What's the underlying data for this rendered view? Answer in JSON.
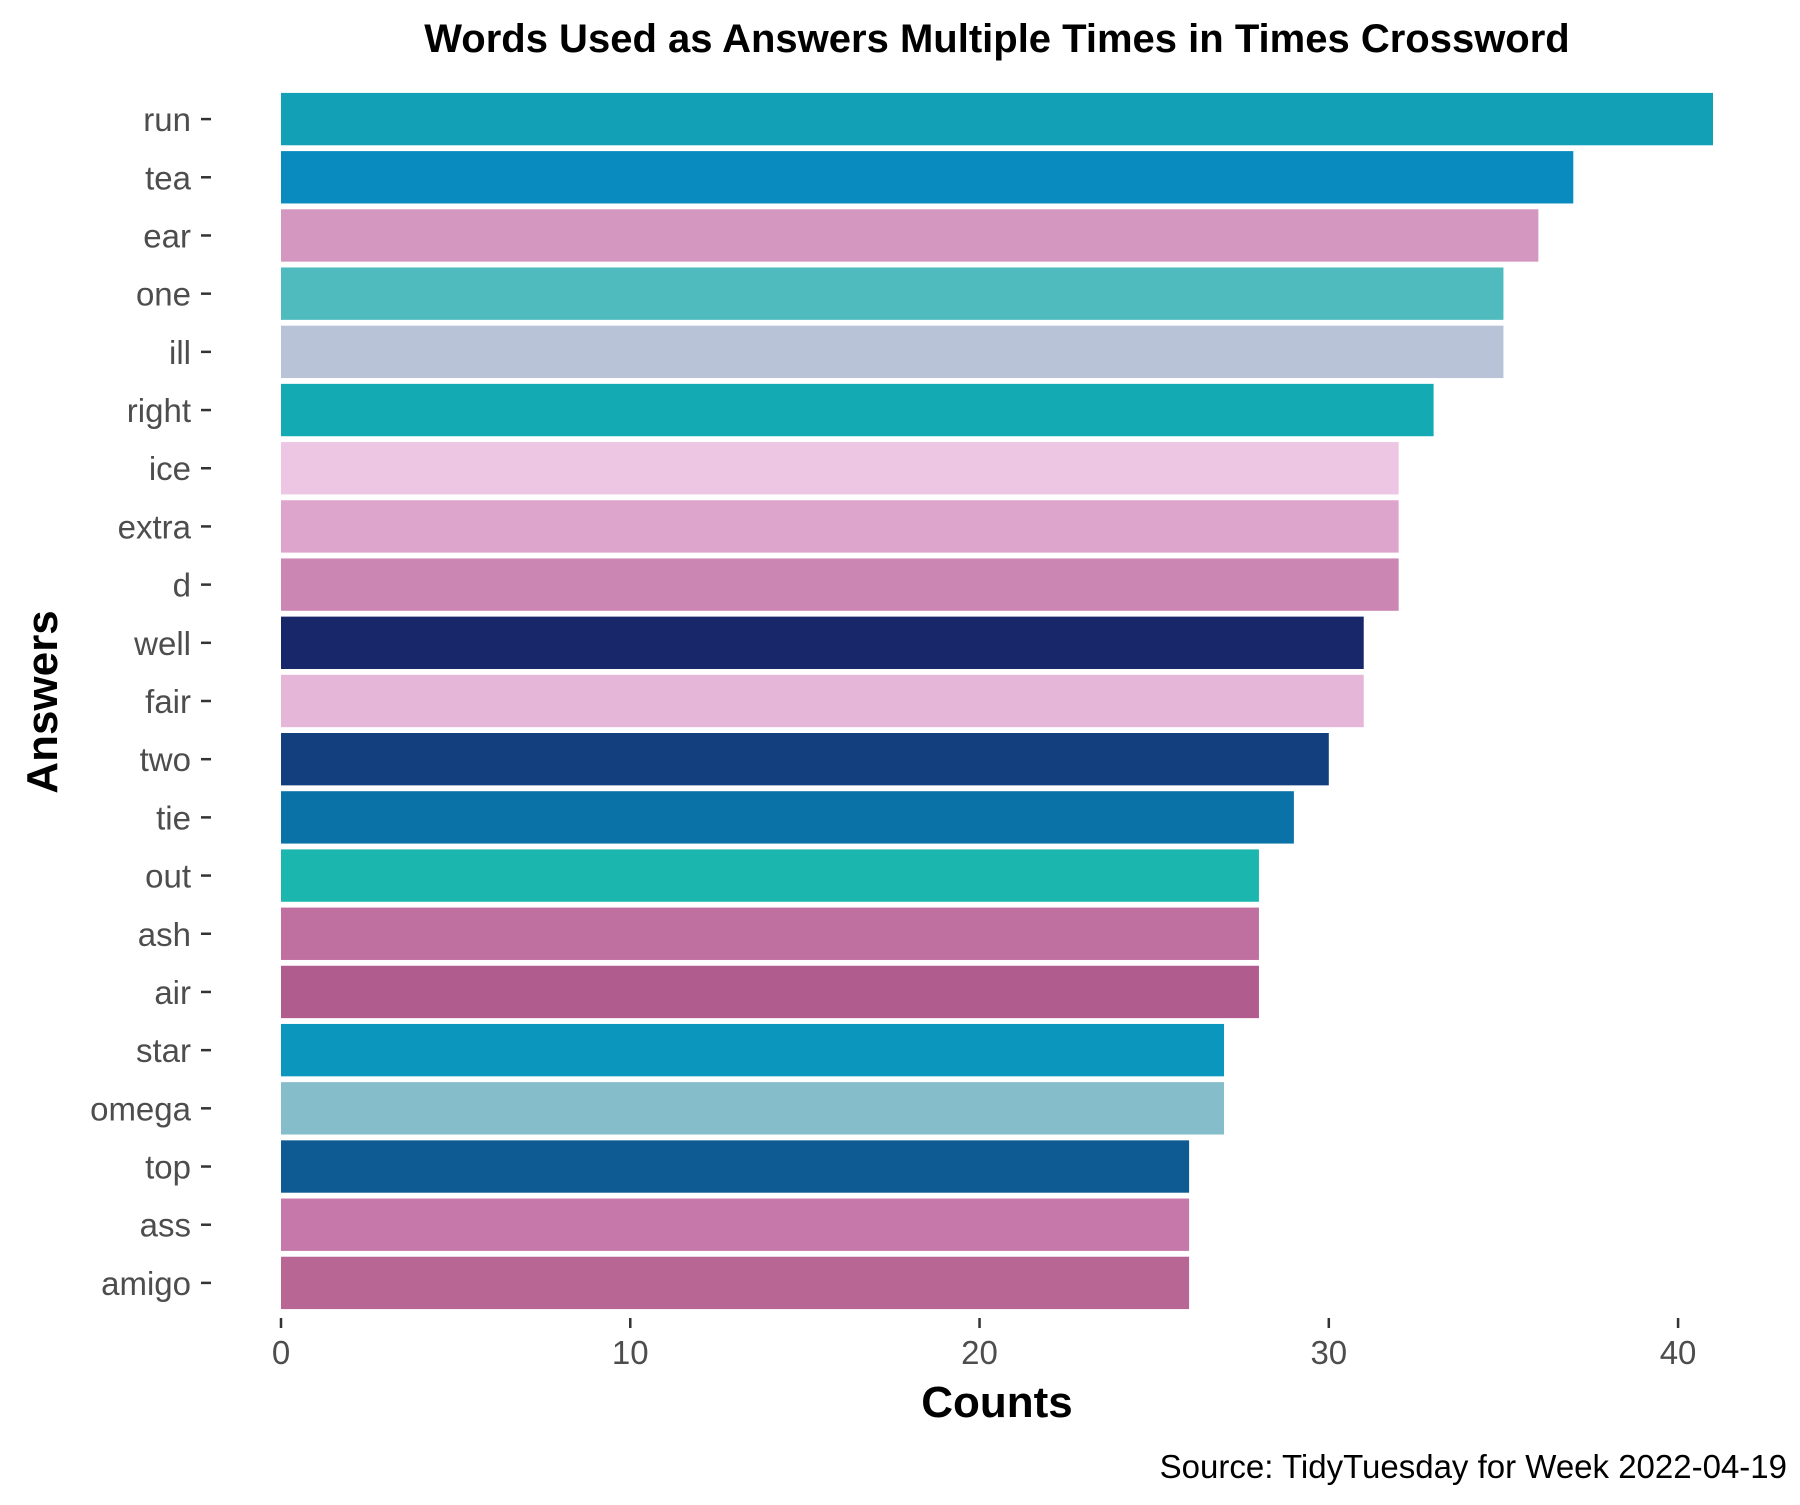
{
  "chart_data": {
    "type": "bar",
    "orientation": "horizontal",
    "title": "Words Used as Answers Multiple Times in Times Crossword",
    "xlabel": "Counts",
    "ylabel": "Answers",
    "caption": "Source: TidyTuesday for Week 2022-04-19",
    "xlim": [
      0,
      41
    ],
    "x_ticks": [
      "0",
      "10",
      "20",
      "30",
      "40"
    ],
    "grid": false,
    "legend": "none",
    "categories": [
      "run",
      "tea",
      "ear",
      "one",
      "ill",
      "right",
      "ice",
      "extra",
      "d",
      "well",
      "fair",
      "two",
      "tie",
      "out",
      "ash",
      "air",
      "star",
      "omega",
      "top",
      "ass",
      "amigo"
    ],
    "values": [
      41,
      37,
      36,
      35,
      35,
      33,
      32,
      32,
      32,
      31,
      31,
      30,
      29,
      28,
      28,
      28,
      27,
      27,
      26,
      26,
      26
    ],
    "colors": [
      "#12a0b7",
      "#0a8bbf",
      "#d497c0",
      "#50bbbe",
      "#b9c3d8",
      "#14aab3",
      "#edc6e4",
      "#dea5cc",
      "#cb86b3",
      "#18266a",
      "#e6b6d9",
      "#133f7e",
      "#0b72a7",
      "#1bb7af",
      "#c06fa1",
      "#b05c8e",
      "#0b97bd",
      "#85bdcb",
      "#0e5b94",
      "#c578a9",
      "#b86795"
    ]
  }
}
